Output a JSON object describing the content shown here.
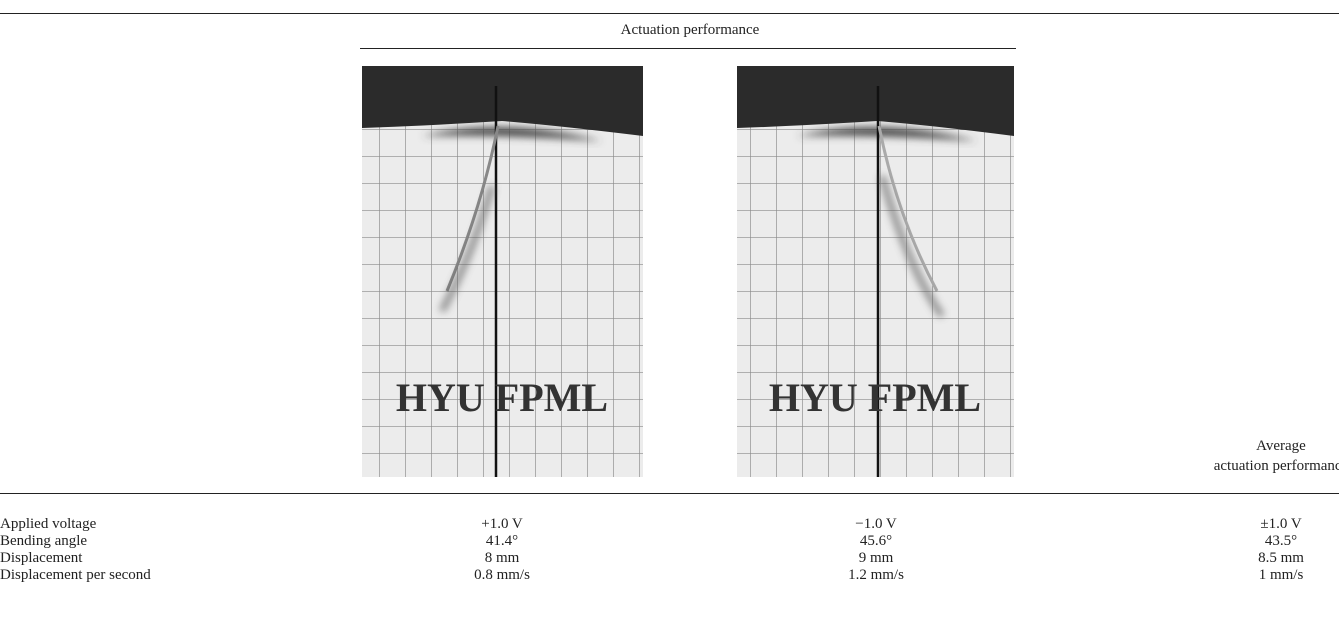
{
  "table": {
    "group_header": "Actuation performance",
    "images": [
      {
        "label": "HYU FPML"
      },
      {
        "label": "HYU FPML"
      }
    ],
    "last_header": [
      "Average",
      "actuation performance"
    ],
    "rows": [
      [
        "Applied voltage",
        "+1.0 V",
        "−1.0 V",
        "±1.0 V"
      ],
      [
        "Bending angle",
        "41.4°",
        "45.6°",
        "43.5°"
      ],
      [
        "Displacement",
        "8 mm",
        "9 mm",
        "8.5 mm"
      ],
      [
        "Displacement per second",
        "0.8 mm/s",
        "1.2 mm/s",
        "1 mm/s"
      ]
    ]
  }
}
